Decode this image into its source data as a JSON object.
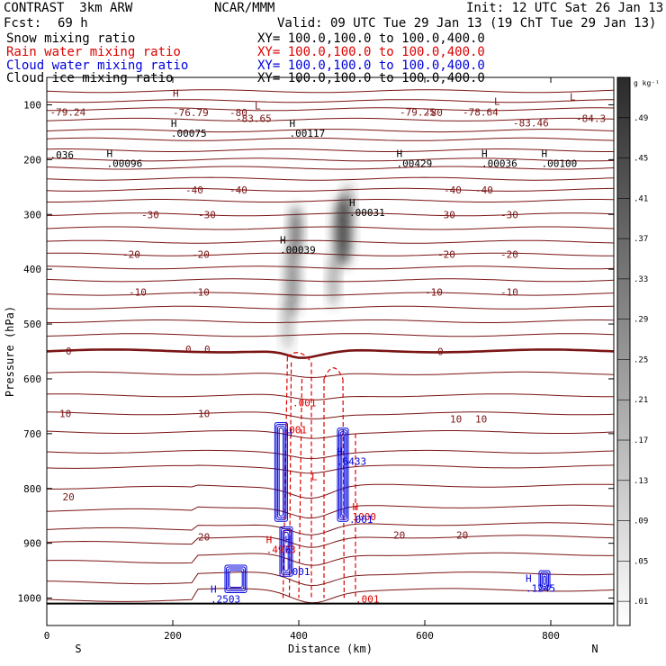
{
  "header": {
    "model": "CONTRAST  3km ARW",
    "center": "NCAR/MMM",
    "init": "Init: 12 UTC Sat 26 Jan 13",
    "fcst_label": "Fcst:",
    "fcst_value": "69 h",
    "valid": "Valid: 09 UTC Tue 29 Jan 13 (19 ChT Tue 29 Jan 13)"
  },
  "fields": [
    {
      "name": "Snow mixing ratio",
      "xy": "XY= 100.0,100.0 to 100.0,400.0",
      "color": "#000000"
    },
    {
      "name": "Rain water mixing ratio",
      "xy": "XY= 100.0,100.0 to 100.0,400.0",
      "color": "#dd0000"
    },
    {
      "name": "Cloud water mixing ratio",
      "xy": "XY= 100.0,100.0 to 100.0,400.0",
      "color": "#0000dd"
    },
    {
      "name": "Cloud ice mixing ratio",
      "xy": "XY= 100.0,100.0 to 100.0,400.0",
      "color": "#000000"
    }
  ],
  "colors": {
    "temperature": "#7a1414",
    "rain": "#dd0000",
    "cloud_water": "#0000dd",
    "snow_shade": "#333333"
  },
  "chart_data": {
    "type": "contour",
    "xlabel": "Distance (km)",
    "ylabel": "Pressure (hPa)",
    "xlim": [
      0,
      900
    ],
    "ylim": [
      1050,
      50
    ],
    "x_ticks": [
      0,
      200,
      400,
      600,
      800
    ],
    "y_ticks": [
      100,
      200,
      300,
      400,
      500,
      600,
      700,
      800,
      900,
      1000
    ],
    "left_end_label": "S",
    "right_end_label": "N",
    "colorbar": {
      "unit": "g kg⁻¹",
      "ticks": [
        ".49",
        ".45",
        ".41",
        ".37",
        ".33",
        ".29",
        ".25",
        ".21",
        ".17",
        ".13",
        ".09",
        ".05",
        ".01"
      ]
    },
    "temperature_labels": [
      {
        "x": 5,
        "p": 113,
        "text": "-79.24"
      },
      {
        "x": 200,
        "p": 114,
        "text": "-76.79"
      },
      {
        "x": 300,
        "p": 125,
        "text": "-83.65"
      },
      {
        "x": 560,
        "p": 113,
        "text": "-79.25"
      },
      {
        "x": 660,
        "p": 113,
        "text": "-78.64"
      },
      {
        "x": 740,
        "p": 133,
        "text": "-83.46"
      },
      {
        "x": 840,
        "p": 125,
        "text": "-84.3"
      },
      {
        "x": 290,
        "p": 114,
        "text": "-80"
      },
      {
        "x": 600,
        "p": 114,
        "text": "-80"
      },
      {
        "x": 220,
        "p": 255,
        "text": "-40"
      },
      {
        "x": 290,
        "p": 255,
        "text": "-40"
      },
      {
        "x": 630,
        "p": 255,
        "text": "-40"
      },
      {
        "x": 680,
        "p": 255,
        "text": "-40"
      },
      {
        "x": 150,
        "p": 300,
        "text": "-30"
      },
      {
        "x": 240,
        "p": 300,
        "text": "-30"
      },
      {
        "x": 620,
        "p": 300,
        "text": "-30"
      },
      {
        "x": 720,
        "p": 300,
        "text": "-30"
      },
      {
        "x": 120,
        "p": 373,
        "text": "-20"
      },
      {
        "x": 230,
        "p": 373,
        "text": "-20"
      },
      {
        "x": 620,
        "p": 373,
        "text": "-20"
      },
      {
        "x": 720,
        "p": 373,
        "text": "-20"
      },
      {
        "x": 130,
        "p": 442,
        "text": "-10"
      },
      {
        "x": 230,
        "p": 442,
        "text": "-10"
      },
      {
        "x": 600,
        "p": 442,
        "text": "-10"
      },
      {
        "x": 720,
        "p": 442,
        "text": "-10"
      },
      {
        "x": 30,
        "p": 549,
        "text": "0"
      },
      {
        "x": 220,
        "p": 546,
        "text": "0"
      },
      {
        "x": 250,
        "p": 546,
        "text": "0"
      },
      {
        "x": 620,
        "p": 550,
        "text": "0"
      },
      {
        "x": 20,
        "p": 663,
        "text": "10"
      },
      {
        "x": 240,
        "p": 663,
        "text": "10"
      },
      {
        "x": 640,
        "p": 673,
        "text": "10"
      },
      {
        "x": 680,
        "p": 673,
        "text": "10"
      },
      {
        "x": 25,
        "p": 815,
        "text": "20"
      },
      {
        "x": 240,
        "p": 888,
        "text": "20"
      },
      {
        "x": 550,
        "p": 885,
        "text": "20"
      },
      {
        "x": 650,
        "p": 885,
        "text": "20"
      }
    ],
    "extrema": [
      {
        "x": 200,
        "p": 85,
        "mark": "H",
        "value": "",
        "color": "#7a1414"
      },
      {
        "x": 330,
        "p": 108,
        "mark": "L",
        "value": "",
        "color": "#7a1414"
      },
      {
        "x": 710,
        "p": 100,
        "mark": "L",
        "value": "",
        "color": "#7a1414"
      },
      {
        "x": 830,
        "p": 92,
        "mark": "L",
        "value": "",
        "color": "#7a1414"
      },
      {
        "x": 197,
        "p": 140,
        "mark": "H",
        "value": ".00075",
        "color": "#000000"
      },
      {
        "x": 385,
        "p": 140,
        "mark": "H",
        "value": ".00117",
        "color": "#000000"
      },
      {
        "x": 5,
        "p": 180,
        "mark": "",
        "value": ".036",
        "color": "#000000"
      },
      {
        "x": 95,
        "p": 195,
        "mark": "H",
        "value": ".00096",
        "color": "#000000"
      },
      {
        "x": 555,
        "p": 195,
        "mark": "H",
        "value": ".00429",
        "color": "#000000"
      },
      {
        "x": 690,
        "p": 195,
        "mark": "H",
        "value": ".00036",
        "color": "#000000"
      },
      {
        "x": 785,
        "p": 195,
        "mark": "H",
        "value": ".00100",
        "color": "#000000"
      },
      {
        "x": 480,
        "p": 285,
        "mark": "H",
        "value": ".00031",
        "color": "#000000"
      },
      {
        "x": 370,
        "p": 353,
        "mark": "H",
        "value": ".00039",
        "color": "#000000"
      },
      {
        "x": 390,
        "p": 632,
        "mark": "",
        "value": ".001",
        "color": "#dd0000"
      },
      {
        "x": 375,
        "p": 681,
        "mark": "",
        "value": ".001",
        "color": "#dd0000"
      },
      {
        "x": 380,
        "p": 705,
        "mark": "H",
        "value": "",
        "color": "#0000dd"
      },
      {
        "x": 460,
        "p": 739,
        "mark": "H",
        "value": ".6433",
        "color": "#0000dd"
      },
      {
        "x": 420,
        "p": 785,
        "mark": "L",
        "value": "",
        "color": "#dd0000"
      },
      {
        "x": 485,
        "p": 840,
        "mark": "H",
        "value": "1000",
        "color": "#dd0000"
      },
      {
        "x": 480,
        "p": 845,
        "mark": "",
        "value": ".001",
        "color": "#0000dd"
      },
      {
        "x": 348,
        "p": 900,
        "mark": "H",
        "value": ".4973",
        "color": "#dd0000"
      },
      {
        "x": 378,
        "p": 900,
        "mark": "H",
        "value": "6",
        "color": "#0000dd"
      },
      {
        "x": 380,
        "p": 940,
        "mark": "",
        "value": ".001",
        "color": "#0000dd"
      },
      {
        "x": 260,
        "p": 990,
        "mark": "H",
        "value": ".2503",
        "color": "#0000dd"
      },
      {
        "x": 490,
        "p": 990,
        "mark": "",
        "value": ".001",
        "color": "#dd0000"
      },
      {
        "x": 760,
        "p": 970,
        "mark": "H",
        "value": ".1245",
        "color": "#0000dd"
      }
    ]
  }
}
